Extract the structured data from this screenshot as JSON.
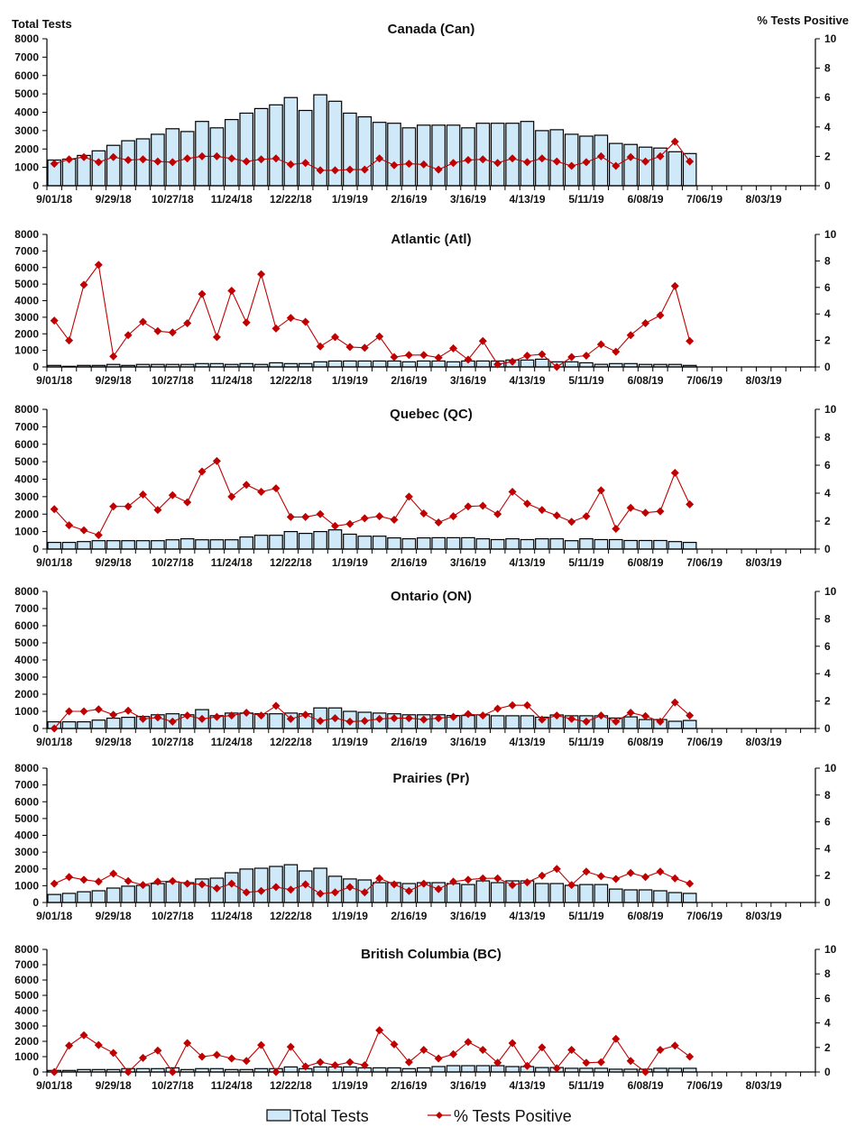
{
  "left_axis_title": "Total Tests",
  "right_axis_title": "% Tests Positive",
  "legend": {
    "bars": "Total Tests",
    "line": "% Tests Positive"
  },
  "colors": {
    "bar_fill": "#cfe9f9",
    "bar_stroke": "#000000",
    "line": "#c00000"
  },
  "chart_data": [
    {
      "type": "bar",
      "title": "Canada (Can)",
      "xticks": [
        "9/01/18",
        "9/29/18",
        "10/27/18",
        "11/24/18",
        "12/22/18",
        "1/19/19",
        "2/16/19",
        "3/16/19",
        "4/13/19",
        "5/11/19",
        "6/08/19",
        "7/06/19",
        "8/03/19"
      ],
      "ylim": [
        0,
        8000
      ],
      "yticks": [
        0,
        1000,
        2000,
        3000,
        4000,
        5000,
        6000,
        7000,
        8000
      ],
      "y2lim": [
        0,
        10
      ],
      "y2ticks": [
        0,
        2,
        4,
        6,
        8,
        10
      ],
      "series": [
        {
          "name": "Total Tests",
          "axis": "left",
          "values": [
            1400,
            1450,
            1650,
            1900,
            2200,
            2450,
            2550,
            2800,
            3100,
            2950,
            3500,
            3150,
            3600,
            3950,
            4200,
            4400,
            4800,
            4100,
            4950,
            4600,
            3950,
            3750,
            3450,
            3400,
            3150,
            3300,
            3300,
            3300,
            3150,
            3400,
            3400,
            3400,
            3500,
            3000,
            3050,
            2800,
            2700,
            2750,
            2300,
            2250,
            2100,
            2050,
            1850,
            1750
          ]
        },
        {
          "name": "% Tests Positive",
          "axis": "right",
          "type": "line",
          "values": [
            1.5,
            1.8,
            1.95,
            1.6,
            1.95,
            1.75,
            1.8,
            1.65,
            1.6,
            1.85,
            2.0,
            2.0,
            1.85,
            1.65,
            1.8,
            1.85,
            1.45,
            1.55,
            1.05,
            1.05,
            1.1,
            1.1,
            1.85,
            1.4,
            1.5,
            1.45,
            1.1,
            1.55,
            1.75,
            1.8,
            1.55,
            1.85,
            1.6,
            1.85,
            1.65,
            1.35,
            1.6,
            2.0,
            1.35,
            1.95,
            1.65,
            2.0,
            3.0,
            1.65
          ]
        }
      ]
    },
    {
      "type": "bar",
      "title": "Atlantic (Atl)",
      "xticks": [
        "9/01/18",
        "9/29/18",
        "10/27/18",
        "11/24/18",
        "12/22/18",
        "1/19/19",
        "2/16/19",
        "3/16/19",
        "4/13/19",
        "5/11/19",
        "6/08/19",
        "7/06/19",
        "8/03/19"
      ],
      "ylim": [
        0,
        8000
      ],
      "yticks": [
        0,
        1000,
        2000,
        3000,
        4000,
        5000,
        6000,
        7000,
        8000
      ],
      "y2lim": [
        0,
        10
      ],
      "y2ticks": [
        0,
        2,
        4,
        6,
        8,
        10
      ],
      "series": [
        {
          "name": "Total Tests",
          "axis": "left",
          "values": [
            90,
            40,
            90,
            90,
            150,
            90,
            150,
            150,
            150,
            150,
            200,
            200,
            150,
            200,
            150,
            250,
            200,
            200,
            310,
            360,
            360,
            360,
            360,
            360,
            310,
            360,
            360,
            310,
            360,
            360,
            360,
            420,
            420,
            470,
            310,
            310,
            250,
            160,
            200,
            200,
            150,
            150,
            150,
            90
          ]
        },
        {
          "name": "% Tests Positive",
          "axis": "right",
          "type": "line",
          "values": [
            3.5,
            2.0,
            6.2,
            7.7,
            0.8,
            2.4,
            3.4,
            2.7,
            2.6,
            3.3,
            5.5,
            2.25,
            5.75,
            3.35,
            7.0,
            2.9,
            3.7,
            3.4,
            1.55,
            2.25,
            1.5,
            1.45,
            2.3,
            0.75,
            0.9,
            0.9,
            0.7,
            1.4,
            0.55,
            1.95,
            0.2,
            0.4,
            0.85,
            0.95,
            0,
            0.75,
            0.85,
            1.7,
            1.15,
            2.4,
            3.3,
            3.9,
            6.1,
            1.95
          ]
        }
      ]
    },
    {
      "type": "bar",
      "title": "Quebec (QC)",
      "xticks": [
        "9/01/18",
        "9/29/18",
        "10/27/18",
        "11/24/18",
        "12/22/18",
        "1/19/19",
        "2/16/19",
        "3/16/19",
        "4/13/19",
        "5/11/19",
        "6/08/19",
        "7/06/19",
        "8/03/19"
      ],
      "ylim": [
        0,
        8000
      ],
      "yticks": [
        0,
        1000,
        2000,
        3000,
        4000,
        5000,
        6000,
        7000,
        8000
      ],
      "y2lim": [
        0,
        10
      ],
      "y2ticks": [
        0,
        2,
        4,
        6,
        8,
        10
      ],
      "series": [
        {
          "name": "Total Tests",
          "axis": "left",
          "values": [
            380,
            380,
            430,
            480,
            480,
            480,
            480,
            480,
            530,
            590,
            530,
            530,
            530,
            690,
            790,
            790,
            1000,
            900,
            1000,
            1100,
            850,
            740,
            740,
            640,
            590,
            640,
            650,
            650,
            650,
            590,
            540,
            590,
            540,
            590,
            590,
            480,
            590,
            540,
            540,
            490,
            490,
            490,
            430,
            380
          ]
        },
        {
          "name": "% Tests Positive",
          "axis": "right",
          "type": "line",
          "values": [
            2.85,
            1.7,
            1.35,
            1.0,
            3.05,
            3.05,
            3.9,
            2.8,
            3.85,
            3.35,
            5.55,
            6.3,
            3.75,
            4.6,
            4.1,
            4.35,
            2.3,
            2.3,
            2.5,
            1.65,
            1.8,
            2.2,
            2.35,
            2.1,
            3.75,
            2.55,
            1.9,
            2.35,
            3.05,
            3.1,
            2.5,
            4.1,
            3.25,
            2.8,
            2.4,
            1.95,
            2.35,
            4.2,
            1.45,
            2.95,
            2.6,
            2.7,
            5.45,
            3.2
          ]
        }
      ]
    },
    {
      "type": "bar",
      "title": "Ontario (ON)",
      "xticks": [
        "9/01/18",
        "9/29/18",
        "10/27/18",
        "11/24/18",
        "12/22/18",
        "1/19/19",
        "2/16/19",
        "3/16/19",
        "4/13/19",
        "5/11/19",
        "6/08/19",
        "7/06/19",
        "8/03/19"
      ],
      "ylim": [
        0,
        8000
      ],
      "yticks": [
        0,
        1000,
        2000,
        3000,
        4000,
        5000,
        6000,
        7000,
        8000
      ],
      "y2lim": [
        0,
        10
      ],
      "y2ticks": [
        0,
        2,
        4,
        6,
        8,
        10
      ],
      "series": [
        {
          "name": "Total Tests",
          "axis": "left",
          "values": [
            390,
            390,
            390,
            490,
            600,
            650,
            700,
            800,
            860,
            800,
            1100,
            750,
            900,
            900,
            860,
            860,
            900,
            860,
            1200,
            1200,
            1000,
            950,
            900,
            860,
            800,
            800,
            800,
            760,
            760,
            800,
            740,
            740,
            740,
            660,
            790,
            740,
            740,
            740,
            610,
            680,
            520,
            520,
            420,
            470
          ]
        },
        {
          "name": "% Tests Positive",
          "axis": "right",
          "type": "line",
          "values": [
            0,
            1.25,
            1.25,
            1.4,
            1.0,
            1.3,
            0.7,
            0.8,
            0.5,
            0.95,
            0.7,
            0.85,
            0.95,
            1.15,
            0.95,
            1.65,
            0.7,
            1.0,
            0.55,
            0.75,
            0.5,
            0.55,
            0.7,
            0.75,
            0.75,
            0.65,
            0.75,
            0.85,
            1.05,
            0.95,
            1.45,
            1.7,
            1.7,
            0.65,
            0.95,
            0.7,
            0.5,
            0.95,
            0.5,
            1.15,
            0.9,
            0.5,
            1.9,
            0.95
          ]
        }
      ]
    },
    {
      "type": "bar",
      "title": "Prairies (Pr)",
      "xticks": [
        "9/01/18",
        "9/29/18",
        "10/27/18",
        "11/24/18",
        "12/22/18",
        "1/19/19",
        "2/16/19",
        "3/16/19",
        "4/13/19",
        "5/11/19",
        "6/08/19",
        "7/06/19",
        "8/03/19"
      ],
      "ylim": [
        0,
        8000
      ],
      "yticks": [
        0,
        1000,
        2000,
        3000,
        4000,
        5000,
        6000,
        7000,
        8000
      ],
      "y2lim": [
        0,
        10
      ],
      "y2ticks": [
        0,
        2,
        4,
        6,
        8,
        10
      ],
      "series": [
        {
          "name": "Total Tests",
          "axis": "left",
          "values": [
            480,
            540,
            640,
            700,
            860,
            970,
            1020,
            1130,
            1230,
            1180,
            1400,
            1450,
            1770,
            1990,
            2040,
            2150,
            2250,
            1880,
            2040,
            1560,
            1400,
            1340,
            1180,
            1180,
            1130,
            1180,
            1180,
            1130,
            1070,
            1290,
            1180,
            1290,
            1290,
            1130,
            1130,
            1020,
            1070,
            1070,
            800,
            750,
            750,
            700,
            590,
            540
          ]
        },
        {
          "name": "% Tests Positive",
          "axis": "right",
          "type": "line",
          "values": [
            1.4,
            1.9,
            1.7,
            1.55,
            2.15,
            1.6,
            1.3,
            1.55,
            1.6,
            1.4,
            1.35,
            1.05,
            1.4,
            0.75,
            0.85,
            1.15,
            0.95,
            1.35,
            0.65,
            0.75,
            1.15,
            0.75,
            1.8,
            1.35,
            0.85,
            1.4,
            1.0,
            1.55,
            1.7,
            1.8,
            1.8,
            1.3,
            1.5,
            2.0,
            2.5,
            1.3,
            2.3,
            1.95,
            1.75,
            2.2,
            1.9,
            2.3,
            1.8,
            1.4
          ]
        }
      ]
    },
    {
      "type": "bar",
      "title": "British Columbia (BC)",
      "xticks": [
        "9/01/18",
        "9/29/18",
        "10/27/18",
        "11/24/18",
        "12/22/18",
        "1/19/19",
        "2/16/19",
        "3/16/19",
        "4/13/19",
        "5/11/19",
        "6/08/19",
        "7/06/19",
        "8/03/19"
      ],
      "ylim": [
        0,
        8000
      ],
      "yticks": [
        0,
        1000,
        2000,
        3000,
        4000,
        5000,
        6000,
        7000,
        8000
      ],
      "y2lim": [
        0,
        10
      ],
      "y2ticks": [
        0,
        2,
        4,
        6,
        8,
        10
      ],
      "series": [
        {
          "name": "Total Tests",
          "axis": "left",
          "values": [
            100,
            100,
            160,
            160,
            160,
            220,
            220,
            220,
            270,
            160,
            220,
            220,
            160,
            160,
            220,
            220,
            330,
            220,
            330,
            330,
            330,
            270,
            270,
            270,
            220,
            270,
            350,
            410,
            410,
            410,
            410,
            350,
            350,
            290,
            290,
            240,
            240,
            240,
            180,
            180,
            180,
            240,
            240,
            240
          ]
        },
        {
          "name": "% Tests Positive",
          "axis": "right",
          "type": "line",
          "values": [
            0,
            2.15,
            3.0,
            2.2,
            1.55,
            0,
            1.15,
            1.75,
            0,
            2.35,
            1.25,
            1.4,
            1.1,
            0.9,
            2.2,
            0,
            2.05,
            0.45,
            0.8,
            0.55,
            0.8,
            0.55,
            3.4,
            2.25,
            0.8,
            1.8,
            1.1,
            1.45,
            2.45,
            1.8,
            0.75,
            2.35,
            0.5,
            2.0,
            0.3,
            1.8,
            0.75,
            0.8,
            2.7,
            0.9,
            0,
            1.8,
            2.15,
            1.25
          ]
        }
      ]
    }
  ]
}
